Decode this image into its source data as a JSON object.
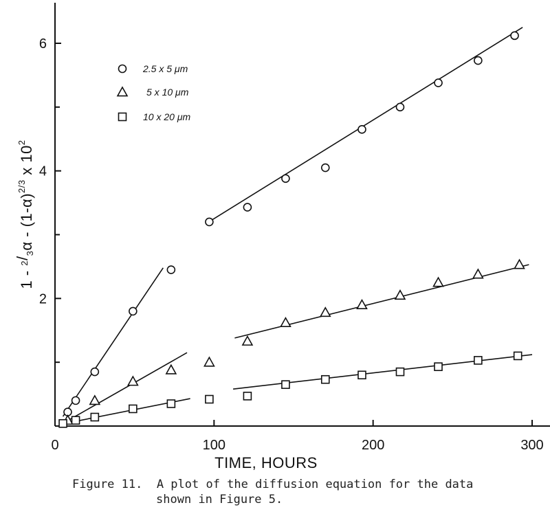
{
  "chart_data": {
    "type": "scatter",
    "xlabel": "TIME, HOURS",
    "ylabel": "1 - 2/3 α - (1-α)^(2/3) x 10^2",
    "ylabel_parts": {
      "pre": "1 - ",
      "two": "2",
      "slash": "/",
      "three": "3",
      "alpha1": "α - (1-α)",
      "exp": "2/3",
      "mid": " x 10",
      "pow": "2"
    },
    "xlim": [
      0,
      300
    ],
    "ylim": [
      0,
      6.5
    ],
    "xticks": [
      0,
      100,
      200,
      300
    ],
    "yticks": [
      2,
      4,
      6
    ],
    "grid": false,
    "legend_position": "top-left",
    "series": [
      {
        "name": "2.5 x 5 μm",
        "marker": "circle",
        "points": [
          [
            8,
            0.22
          ],
          [
            13,
            0.4
          ],
          [
            25,
            0.85
          ],
          [
            49,
            1.8
          ],
          [
            73,
            2.45
          ],
          [
            97,
            3.2
          ],
          [
            121,
            3.43
          ],
          [
            145,
            3.88
          ],
          [
            170,
            4.05
          ],
          [
            193,
            4.65
          ],
          [
            217,
            5.0
          ],
          [
            241,
            5.38
          ],
          [
            266,
            5.73
          ],
          [
            289,
            6.12
          ]
        ],
        "fits": [
          [
            [
              5,
              0.15
            ],
            [
              68,
              2.48
            ]
          ],
          [
            [
              98,
              3.22
            ],
            [
              294,
              6.25
            ]
          ]
        ]
      },
      {
        "name": "5 x 10 μm",
        "marker": "triangle",
        "points": [
          [
            8,
            0.09
          ],
          [
            25,
            0.4
          ],
          [
            49,
            0.7
          ],
          [
            73,
            0.88
          ],
          [
            97,
            1.0
          ],
          [
            121,
            1.33
          ],
          [
            145,
            1.62
          ],
          [
            170,
            1.78
          ],
          [
            193,
            1.9
          ],
          [
            217,
            2.05
          ],
          [
            241,
            2.25
          ],
          [
            266,
            2.38
          ],
          [
            292,
            2.53
          ]
        ],
        "fits": [
          [
            [
              7,
              0.07
            ],
            [
              83,
              1.15
            ]
          ],
          [
            [
              113,
              1.38
            ],
            [
              298,
              2.53
            ]
          ]
        ]
      },
      {
        "name": "10 x 20 μm",
        "marker": "square",
        "points": [
          [
            5,
            0.04
          ],
          [
            13,
            0.09
          ],
          [
            25,
            0.14
          ],
          [
            49,
            0.27
          ],
          [
            73,
            0.35
          ],
          [
            97,
            0.42
          ],
          [
            121,
            0.47
          ],
          [
            145,
            0.65
          ],
          [
            170,
            0.73
          ],
          [
            193,
            0.8
          ],
          [
            217,
            0.85
          ],
          [
            241,
            0.93
          ],
          [
            266,
            1.03
          ],
          [
            291,
            1.1
          ]
        ],
        "fits": [
          [
            [
              4,
              0.03
            ],
            [
              85,
              0.43
            ]
          ],
          [
            [
              112,
              0.58
            ],
            [
              300,
              1.12
            ]
          ]
        ]
      }
    ]
  },
  "caption": {
    "line1": "Figure 11.  A plot of the diffusion equation for the data",
    "line2": "shown in Figure 5."
  }
}
